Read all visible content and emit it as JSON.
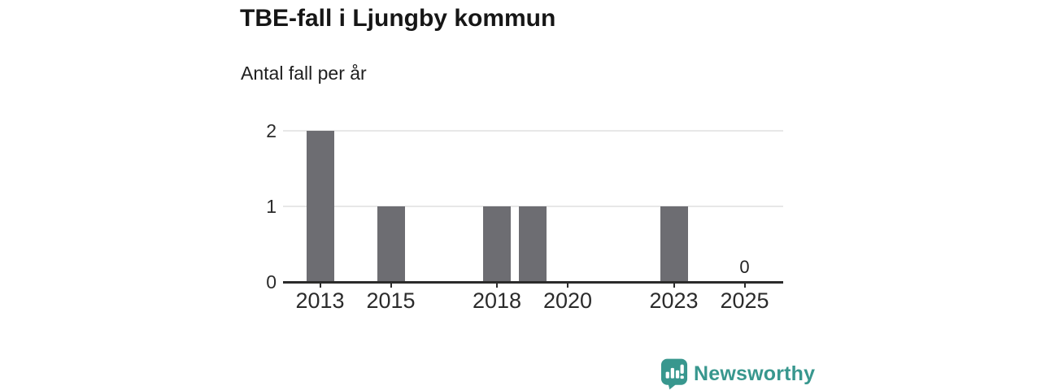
{
  "chart_data": {
    "type": "bar",
    "title": "TBE-fall i Ljungby kommun",
    "subtitle": "Antal fall per år",
    "categories": [
      2012,
      2013,
      2014,
      2015,
      2016,
      2017,
      2018,
      2019,
      2020,
      2021,
      2022,
      2023,
      2024,
      2025
    ],
    "values": [
      0,
      2,
      0,
      1,
      0,
      0,
      1,
      1,
      0,
      0,
      0,
      1,
      0,
      0
    ],
    "x_tick_labels": [
      "2013",
      "2015",
      "2018",
      "2020",
      "2023",
      "2025"
    ],
    "y_ticks": [
      0,
      1,
      2
    ],
    "ylim": [
      0,
      2
    ],
    "grid": "horizontal",
    "legend": "none",
    "bar_color": "#6d6d72",
    "annotations": [
      {
        "x": 2025,
        "text": "0"
      }
    ]
  },
  "branding": {
    "logo_text": "Newsworthy",
    "logo_color": "#38978e",
    "logo_icon": "speech-bubble-bar-chart-exclamation"
  },
  "colors": {
    "background": "#ffffff",
    "title_text": "#161616",
    "axis_text": "#2b2b2b",
    "axis_line": "#2b2b2b",
    "gridline": "#e7e7e7"
  }
}
